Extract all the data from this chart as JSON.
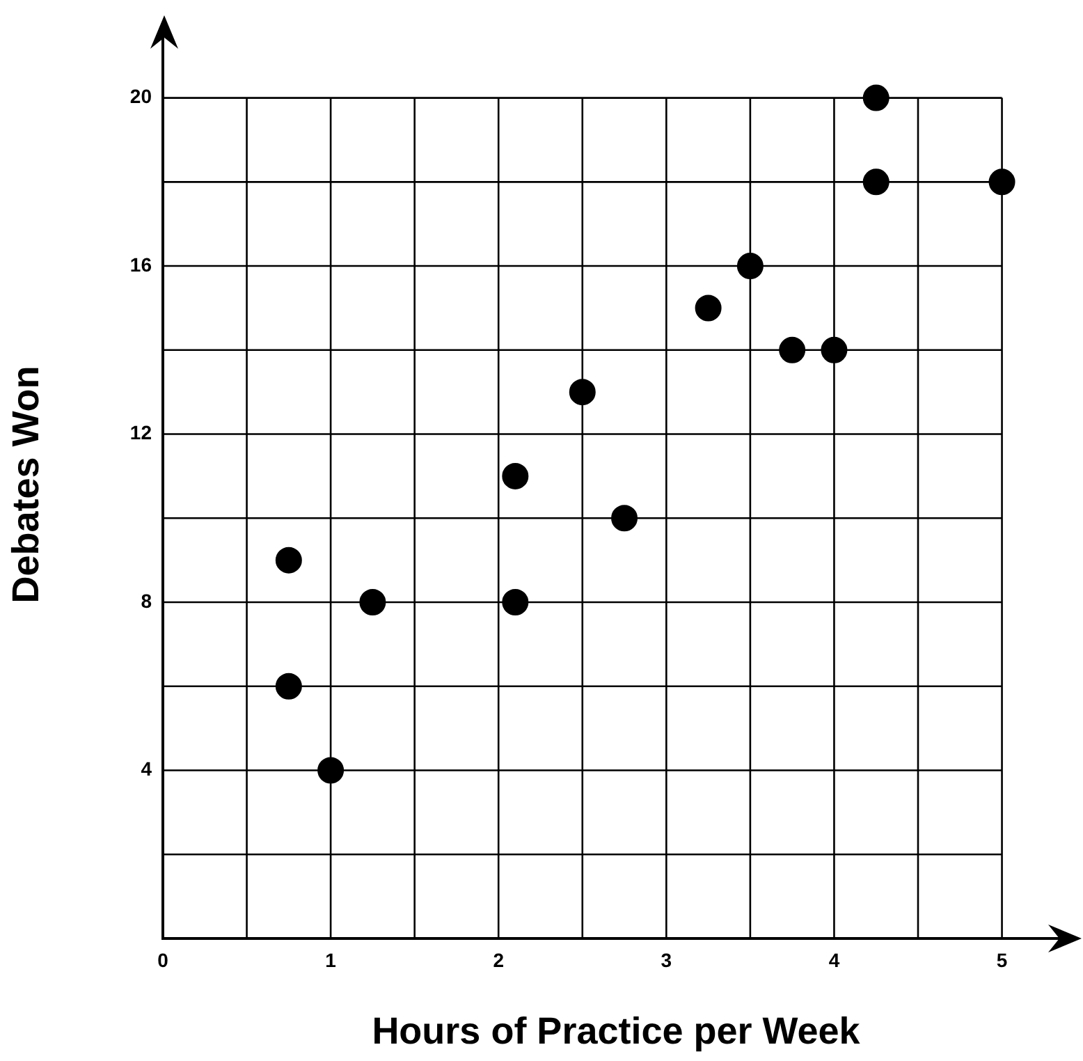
{
  "chart_data": {
    "type": "scatter",
    "xlabel": "Hours of Practice per Week",
    "ylabel": "Debates Won",
    "x": [
      0.75,
      0.75,
      1,
      1.25,
      2.1,
      2.1,
      2.5,
      2.75,
      3.25,
      3.5,
      3.75,
      4,
      4.25,
      4.25,
      5
    ],
    "values": [
      9,
      6,
      4,
      8,
      11,
      8,
      13,
      10,
      15,
      16,
      14,
      14,
      20,
      18,
      18
    ],
    "color": "#000000",
    "marker": "circle",
    "grid": true,
    "xlim": [
      0,
      5.4
    ],
    "ylim": [
      0,
      21.6
    ],
    "xticks": [
      0,
      {
        "value": 0.5,
        "label": null
      },
      1,
      {
        "value": 1.5,
        "label": null
      },
      2,
      {
        "value": 2.5,
        "label": null
      },
      3,
      {
        "value": 3.5,
        "label": null
      },
      4,
      {
        "value": 4.5,
        "label": null
      },
      5
    ],
    "yticks": [
      {
        "value": 0,
        "label": null
      },
      {
        "value": 2,
        "label": null
      },
      4,
      {
        "value": 6,
        "label": null
      },
      8,
      {
        "value": 10,
        "label": null
      },
      12,
      {
        "value": 14,
        "label": null
      },
      16,
      {
        "value": 18,
        "label": null
      },
      20
    ]
  }
}
